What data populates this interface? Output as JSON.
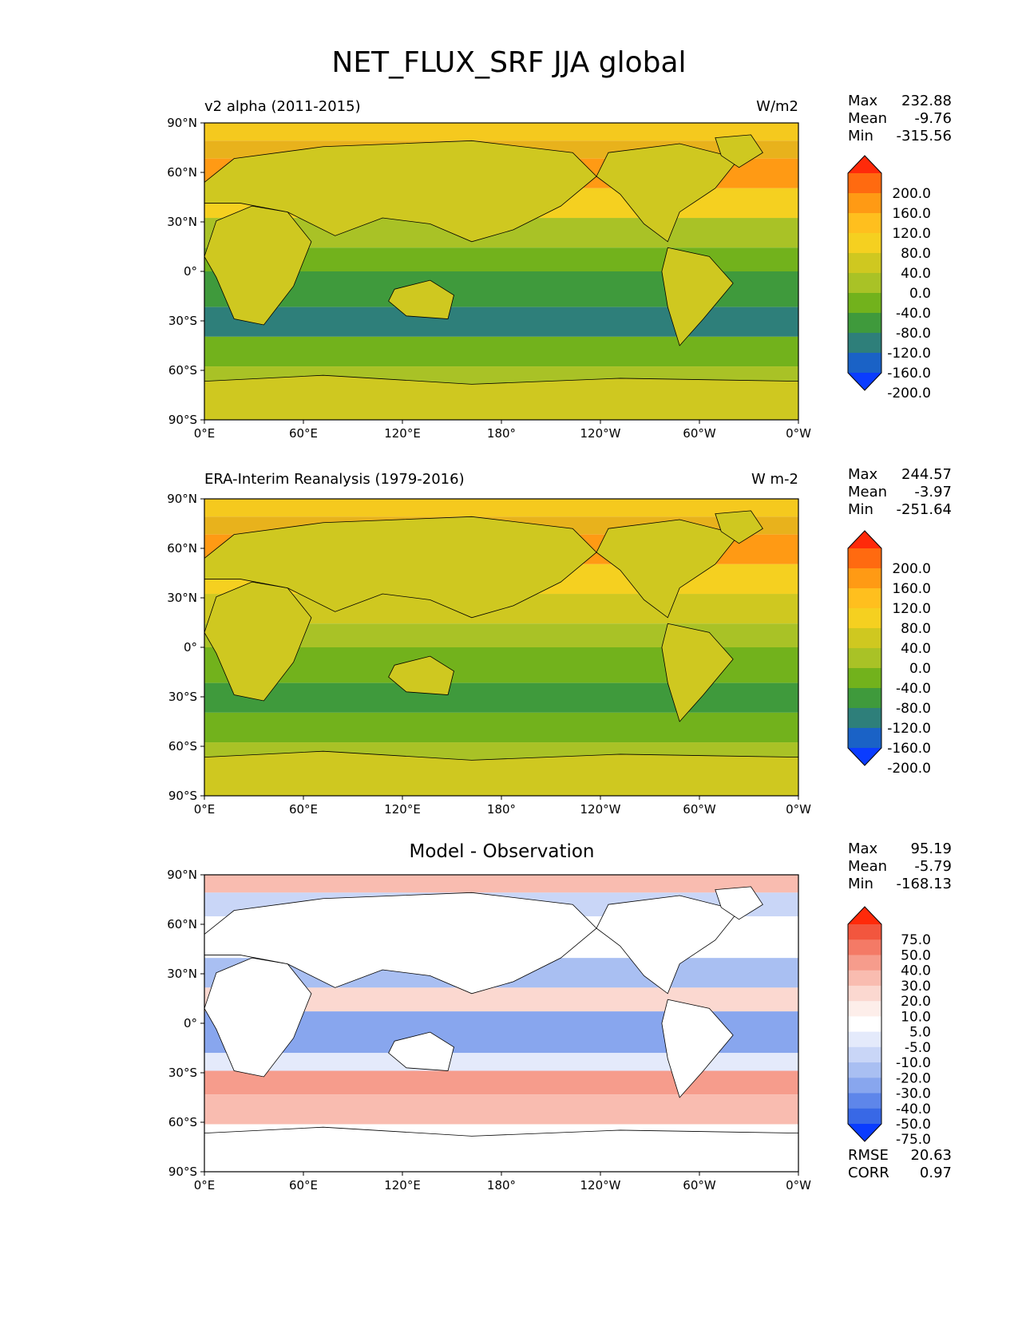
{
  "title": "NET_FLUX_SRF JJA global",
  "lat_ticks": [
    "90°N",
    "60°N",
    "30°N",
    "0°",
    "30°S",
    "60°S",
    "90°S"
  ],
  "lon_ticks": [
    "0°E",
    "60°E",
    "120°E",
    "180°",
    "120°W",
    "60°W",
    "0°W"
  ],
  "panels": [
    {
      "title_left": "v2 alpha (2011-2015)",
      "title_right": "W/m2",
      "stats": {
        "max_label": "Max",
        "max": "232.88",
        "mean_label": "Mean",
        "mean": "-9.76",
        "min_label": "Min",
        "min": "-315.56"
      },
      "colorbar": {
        "labels": [
          "200.0",
          "160.0",
          "120.0",
          "80.0",
          "40.0",
          "0.0",
          "-40.0",
          "-80.0",
          "-120.0",
          "-160.0",
          "-200.0"
        ],
        "colors": [
          "#ff2a0a",
          "#ff6a10",
          "#ff9a14",
          "#ffbf1e",
          "#f5d020",
          "#cfc820",
          "#a9c226",
          "#72b21c",
          "#3f9a3c",
          "#2e7f7a",
          "#1a62c6",
          "#0a3cff"
        ]
      }
    },
    {
      "title_left": "ERA-Interim Reanalysis (1979-2016)",
      "title_right": "W m-2",
      "stats": {
        "max_label": "Max",
        "max": "244.57",
        "mean_label": "Mean",
        "mean": "-3.97",
        "min_label": "Min",
        "min": "-251.64"
      },
      "colorbar": {
        "labels": [
          "200.0",
          "160.0",
          "120.0",
          "80.0",
          "40.0",
          "0.0",
          "-40.0",
          "-80.0",
          "-120.0",
          "-160.0",
          "-200.0"
        ],
        "colors": [
          "#ff2a0a",
          "#ff6a10",
          "#ff9a14",
          "#ffbf1e",
          "#f5d020",
          "#cfc820",
          "#a9c226",
          "#72b21c",
          "#3f9a3c",
          "#2e7f7a",
          "#1a62c6",
          "#0a3cff"
        ]
      }
    },
    {
      "title_center": "Model - Observation",
      "stats": {
        "max_label": "Max",
        "max": "95.19",
        "mean_label": "Mean",
        "mean": "-5.79",
        "min_label": "Min",
        "min": "-168.13"
      },
      "extra_stats": {
        "rmse_label": "RMSE",
        "rmse": "20.63",
        "corr_label": "CORR",
        "corr": "0.97"
      },
      "colorbar": {
        "labels": [
          "75.0",
          "50.0",
          "40.0",
          "30.0",
          "20.0",
          "10.0",
          "5.0",
          "-5.0",
          "-10.0",
          "-20.0",
          "-30.0",
          "-40.0",
          "-50.0",
          "-75.0"
        ],
        "colors": [
          "#ff2a0a",
          "#f2563e",
          "#f47a66",
          "#f69c8c",
          "#f9bcb0",
          "#fbd8d0",
          "#fdeeea",
          "#ffffff",
          "#e4eafb",
          "#c9d6f7",
          "#a9bff2",
          "#88a6ee",
          "#5e86ea",
          "#3868e6",
          "#0a3cff"
        ]
      }
    }
  ]
}
